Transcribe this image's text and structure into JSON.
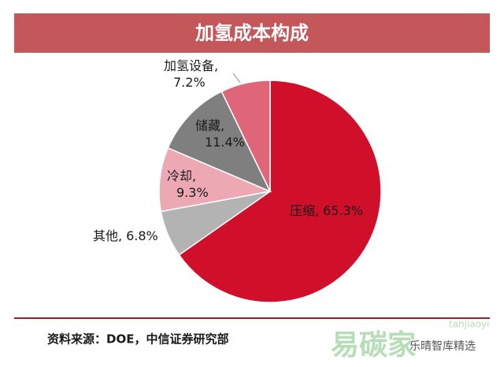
{
  "chart_data": {
    "type": "pie",
    "title": "加氢成本构成",
    "categories": [
      "压缩,",
      "其他,",
      "冷却,",
      "储藏,",
      "加氢设备,"
    ],
    "values": [
      65.3,
      6.8,
      9.3,
      11.4,
      7.2
    ],
    "value_labels": [
      "65.3%",
      "6.8%",
      "9.3%",
      "11.4%",
      "7.2%"
    ],
    "colors": [
      "#d0102a",
      "#b3b3b3",
      "#eda9b3",
      "#7f7f7f",
      "#df6679"
    ],
    "source": "资料来源：DOE，中信证券研究部"
  },
  "watermark": {
    "logo": "易碳家",
    "site": "tanjiaoyi",
    "account": "乐晴智库精选"
  }
}
